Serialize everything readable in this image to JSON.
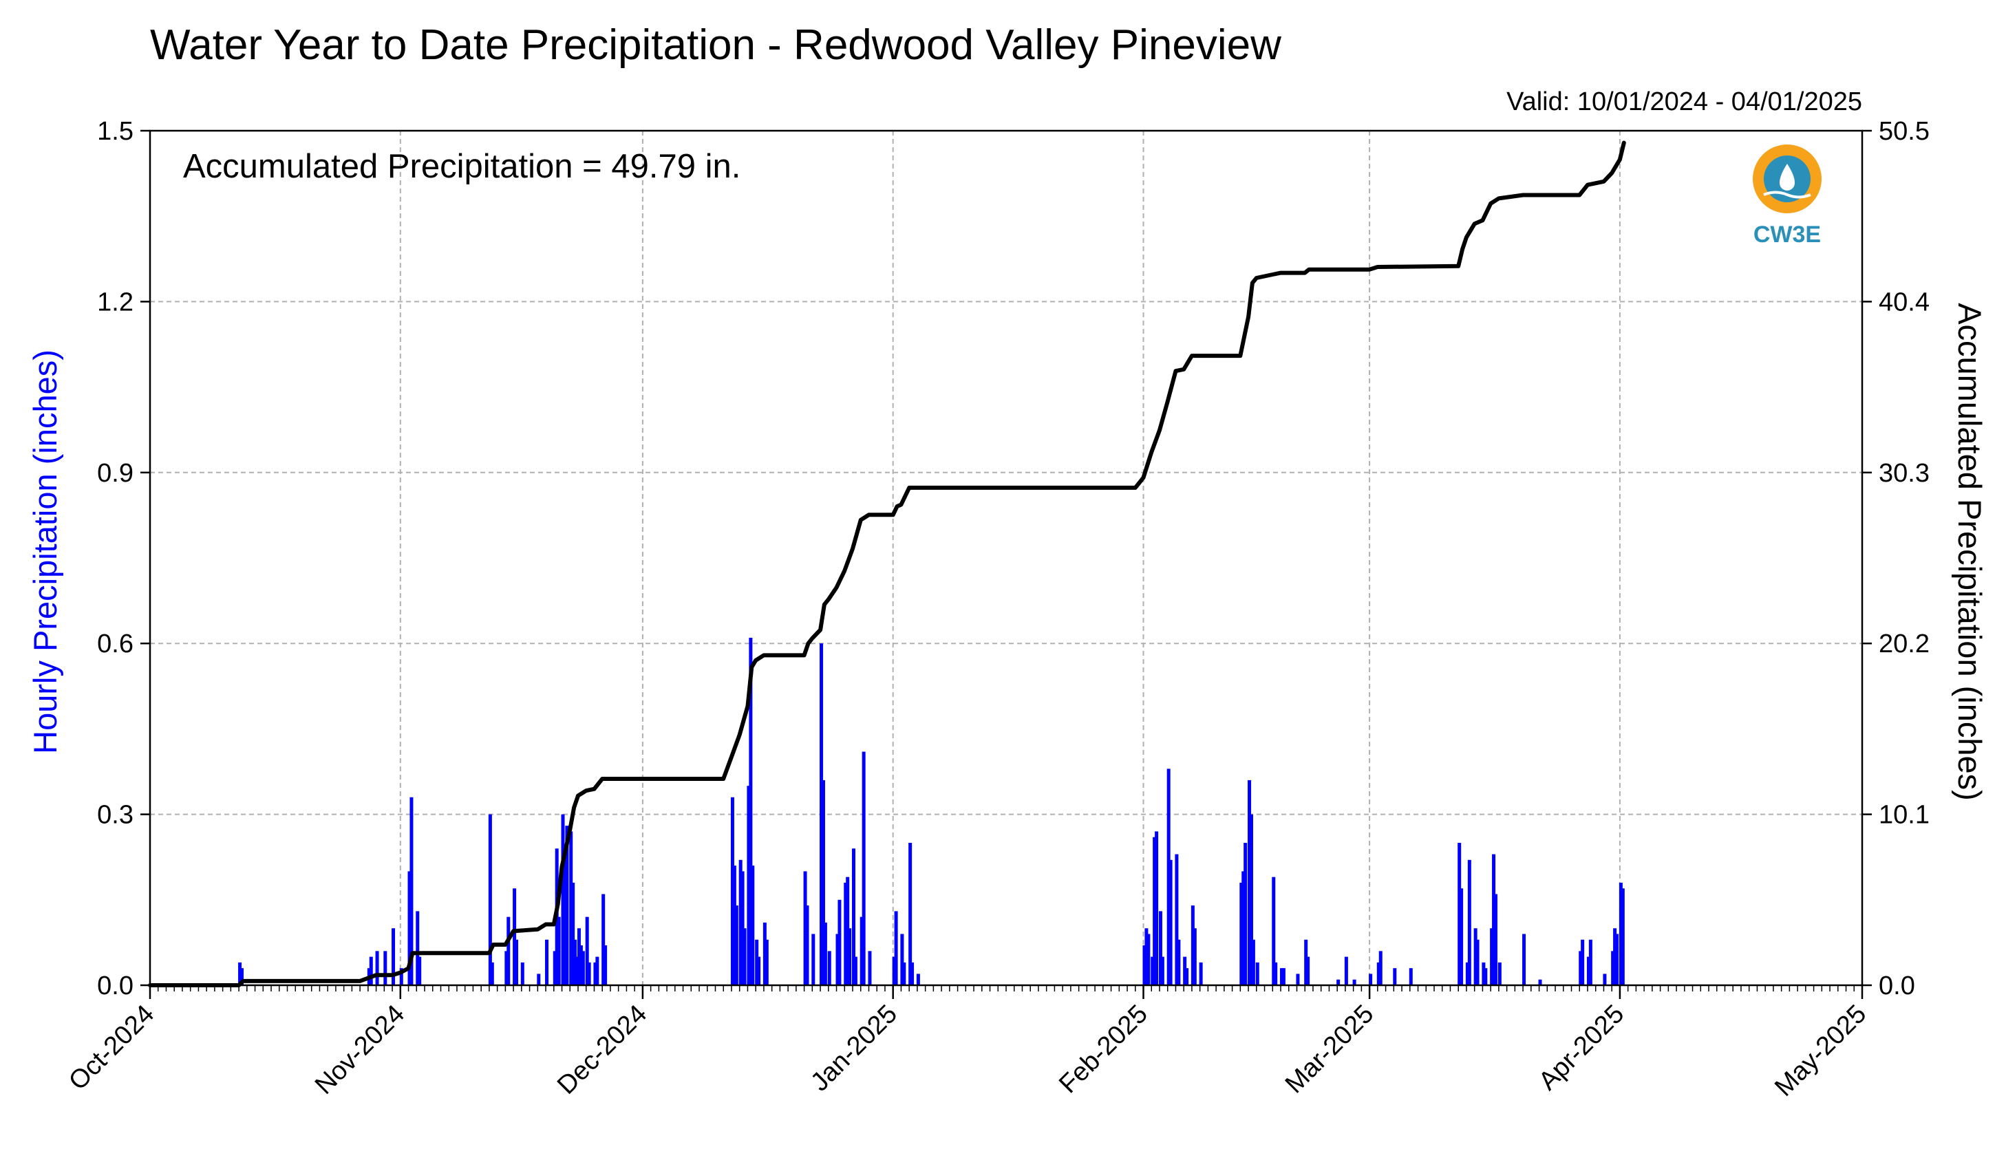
{
  "chart_data": {
    "type": "bar",
    "title": "Water Year to Date Precipitation - Redwood Valley Pineview",
    "valid_text": "Valid: 10/01/2024 - 04/01/2025",
    "annotation": "Accumulated Precipitation = 49.79 in.",
    "logo_text": "CW3E",
    "ylabel_left": "Hourly Precipitation (inches)",
    "ylabel_right": "Accumulated Precipitation (inches)",
    "x_tick_labels": [
      "Oct-2024",
      "Nov-2024",
      "Dec-2024",
      "Jan-2025",
      "Feb-2025",
      "Mar-2025",
      "Apr-2025",
      "May-2025"
    ],
    "x_tick_dates": [
      "2024-10-01",
      "2024-11-01",
      "2024-12-01",
      "2025-01-01",
      "2025-02-01",
      "2025-03-01",
      "2025-04-01",
      "2025-05-01"
    ],
    "xlim": [
      "2024-10-01",
      "2025-05-01"
    ],
    "left_ticks": [
      "0.0",
      "0.3",
      "0.6",
      "0.9",
      "1.2",
      "1.5"
    ],
    "right_ticks": [
      "0.0",
      "10.1",
      "20.2",
      "30.3",
      "40.4",
      "50.5"
    ],
    "ylim_left": [
      0,
      1.5
    ],
    "ylim_right": [
      0,
      50.5
    ],
    "grid": true,
    "colors": {
      "hourly": "#0000ff",
      "accumulated": "#000000",
      "ylabel_left": "#0000ff",
      "grid": "#b0b0b0"
    },
    "series": [
      {
        "name": "Hourly Precipitation (inches)",
        "axis": "left",
        "style": "bar",
        "points": [
          [
            "2024-10-12",
            0.04
          ],
          [
            "2024-10-12",
            0.03
          ],
          [
            "2024-10-28",
            0.03
          ],
          [
            "2024-10-28",
            0.05
          ],
          [
            "2024-10-29",
            0.06
          ],
          [
            "2024-10-30",
            0.06
          ],
          [
            "2024-10-31",
            0.1
          ],
          [
            "2024-11-01",
            0.03
          ],
          [
            "2024-11-02",
            0.2
          ],
          [
            "2024-11-02",
            0.33
          ],
          [
            "2024-11-03",
            0.13
          ],
          [
            "2024-11-03",
            0.05
          ],
          [
            "2024-11-12",
            0.3
          ],
          [
            "2024-11-12",
            0.04
          ],
          [
            "2024-11-14",
            0.06
          ],
          [
            "2024-11-14",
            0.12
          ],
          [
            "2024-11-15",
            0.17
          ],
          [
            "2024-11-15",
            0.08
          ],
          [
            "2024-11-16",
            0.04
          ],
          [
            "2024-11-18",
            0.02
          ],
          [
            "2024-11-19",
            0.08
          ],
          [
            "2024-11-20",
            0.06
          ],
          [
            "2024-11-20",
            0.24
          ],
          [
            "2024-11-20",
            0.12
          ],
          [
            "2024-11-21",
            0.3
          ],
          [
            "2024-11-21",
            0.24
          ],
          [
            "2024-11-21",
            0.28
          ],
          [
            "2024-11-22",
            0.27
          ],
          [
            "2024-11-22",
            0.18
          ],
          [
            "2024-11-22",
            0.08
          ],
          [
            "2024-11-22",
            0.05
          ],
          [
            "2024-11-23",
            0.1
          ],
          [
            "2024-11-23",
            0.07
          ],
          [
            "2024-11-23",
            0.06
          ],
          [
            "2024-11-24",
            0.12
          ],
          [
            "2024-11-24",
            0.04
          ],
          [
            "2024-11-25",
            0.04
          ],
          [
            "2024-11-25",
            0.05
          ],
          [
            "2024-11-26",
            0.16
          ],
          [
            "2024-11-26",
            0.07
          ],
          [
            "2024-12-12",
            0.33
          ],
          [
            "2024-12-12",
            0.21
          ],
          [
            "2024-12-12",
            0.14
          ],
          [
            "2024-12-13",
            0.22
          ],
          [
            "2024-12-13",
            0.2
          ],
          [
            "2024-12-13",
            0.1
          ],
          [
            "2024-12-14",
            0.35
          ],
          [
            "2024-12-14",
            0.61
          ],
          [
            "2024-12-14",
            0.21
          ],
          [
            "2024-12-15",
            0.08
          ],
          [
            "2024-12-15",
            0.05
          ],
          [
            "2024-12-16",
            0.11
          ],
          [
            "2024-12-16",
            0.08
          ],
          [
            "2024-12-21",
            0.2
          ],
          [
            "2024-12-21",
            0.14
          ],
          [
            "2024-12-22",
            0.09
          ],
          [
            "2024-12-23",
            0.6
          ],
          [
            "2024-12-23",
            0.36
          ],
          [
            "2024-12-23",
            0.11
          ],
          [
            "2024-12-24",
            0.06
          ],
          [
            "2024-12-25",
            0.09
          ],
          [
            "2024-12-25",
            0.15
          ],
          [
            "2024-12-26",
            0.18
          ],
          [
            "2024-12-26",
            0.19
          ],
          [
            "2024-12-26",
            0.1
          ],
          [
            "2024-12-27",
            0.24
          ],
          [
            "2024-12-27",
            0.05
          ],
          [
            "2024-12-28",
            0.12
          ],
          [
            "2024-12-28",
            0.41
          ],
          [
            "2024-12-29",
            0.06
          ],
          [
            "2025-01-01",
            0.05
          ],
          [
            "2025-01-01",
            0.13
          ],
          [
            "2025-01-02",
            0.09
          ],
          [
            "2025-01-02",
            0.04
          ],
          [
            "2025-01-03",
            0.25
          ],
          [
            "2025-01-03",
            0.04
          ],
          [
            "2025-01-04",
            0.02
          ],
          [
            "2025-02-01",
            0.07
          ],
          [
            "2025-02-01",
            0.1
          ],
          [
            "2025-02-01",
            0.09
          ],
          [
            "2025-02-02",
            0.05
          ],
          [
            "2025-02-02",
            0.26
          ],
          [
            "2025-02-02",
            0.27
          ],
          [
            "2025-02-03",
            0.13
          ],
          [
            "2025-02-03",
            0.05
          ],
          [
            "2025-02-04",
            0.38
          ],
          [
            "2025-02-04",
            0.22
          ],
          [
            "2025-02-05",
            0.23
          ],
          [
            "2025-02-05",
            0.08
          ],
          [
            "2025-02-06",
            0.05
          ],
          [
            "2025-02-06",
            0.03
          ],
          [
            "2025-02-07",
            0.14
          ],
          [
            "2025-02-07",
            0.1
          ],
          [
            "2025-02-08",
            0.04
          ],
          [
            "2025-02-13",
            0.18
          ],
          [
            "2025-02-13",
            0.2
          ],
          [
            "2025-02-13",
            0.25
          ],
          [
            "2025-02-14",
            0.36
          ],
          [
            "2025-02-14",
            0.3
          ],
          [
            "2025-02-14",
            0.08
          ],
          [
            "2025-02-15",
            0.04
          ],
          [
            "2025-02-17",
            0.19
          ],
          [
            "2025-02-17",
            0.04
          ],
          [
            "2025-02-18",
            0.03
          ],
          [
            "2025-02-18",
            0.03
          ],
          [
            "2025-02-20",
            0.02
          ],
          [
            "2025-02-21",
            0.08
          ],
          [
            "2025-02-21",
            0.05
          ],
          [
            "2025-02-25",
            0.01
          ],
          [
            "2025-02-26",
            0.05
          ],
          [
            "2025-02-27",
            0.01
          ],
          [
            "2025-03-01",
            0.02
          ],
          [
            "2025-03-02",
            0.04
          ],
          [
            "2025-03-02",
            0.06
          ],
          [
            "2025-03-04",
            0.03
          ],
          [
            "2025-03-06",
            0.03
          ],
          [
            "2025-03-12",
            0.25
          ],
          [
            "2025-03-12",
            0.17
          ],
          [
            "2025-03-13",
            0.04
          ],
          [
            "2025-03-13",
            0.22
          ],
          [
            "2025-03-14",
            0.1
          ],
          [
            "2025-03-14",
            0.08
          ],
          [
            "2025-03-15",
            0.04
          ],
          [
            "2025-03-15",
            0.03
          ],
          [
            "2025-03-16",
            0.1
          ],
          [
            "2025-03-16",
            0.23
          ],
          [
            "2025-03-16",
            0.16
          ],
          [
            "2025-03-17",
            0.04
          ],
          [
            "2025-03-20",
            0.09
          ],
          [
            "2025-03-22",
            0.01
          ],
          [
            "2025-03-27",
            0.06
          ],
          [
            "2025-03-27",
            0.08
          ],
          [
            "2025-03-28",
            0.05
          ],
          [
            "2025-03-28",
            0.08
          ],
          [
            "2025-03-30",
            0.02
          ],
          [
            "2025-03-31",
            0.06
          ],
          [
            "2025-03-31",
            0.1
          ],
          [
            "2025-03-31",
            0.09
          ],
          [
            "2025-04-01",
            0.18
          ],
          [
            "2025-04-01",
            0.17
          ]
        ]
      },
      {
        "name": "Accumulated Precipitation (inches)",
        "axis": "right",
        "style": "line",
        "points": [
          [
            "2024-10-01",
            0.0
          ],
          [
            "2024-10-12",
            0.0
          ],
          [
            "2024-10-12",
            0.25
          ],
          [
            "2024-10-27",
            0.25
          ],
          [
            "2024-10-29",
            0.6
          ],
          [
            "2024-10-31",
            0.6
          ],
          [
            "2024-11-01",
            0.75
          ],
          [
            "2024-11-02",
            1.0
          ],
          [
            "2024-11-02",
            1.9
          ],
          [
            "2024-11-12",
            1.9
          ],
          [
            "2024-11-12",
            2.4
          ],
          [
            "2024-11-14",
            2.4
          ],
          [
            "2024-11-15",
            3.2
          ],
          [
            "2024-11-18",
            3.3
          ],
          [
            "2024-11-19",
            3.6
          ],
          [
            "2024-11-20",
            3.6
          ],
          [
            "2024-11-20",
            4.8
          ],
          [
            "2024-11-21",
            7.0
          ],
          [
            "2024-11-22",
            9.2
          ],
          [
            "2024-11-22",
            10.5
          ],
          [
            "2024-11-23",
            11.2
          ],
          [
            "2024-11-24",
            11.5
          ],
          [
            "2024-11-25",
            11.6
          ],
          [
            "2024-11-26",
            12.2
          ],
          [
            "2024-12-11",
            12.2
          ],
          [
            "2024-12-12",
            13.5
          ],
          [
            "2024-12-13",
            14.8
          ],
          [
            "2024-12-14",
            16.5
          ],
          [
            "2024-12-14",
            18.8
          ],
          [
            "2024-12-15",
            19.2
          ],
          [
            "2024-12-16",
            19.5
          ],
          [
            "2024-12-21",
            19.5
          ],
          [
            "2024-12-21",
            20.2
          ],
          [
            "2024-12-22",
            20.5
          ],
          [
            "2024-12-23",
            21.0
          ],
          [
            "2024-12-23",
            22.5
          ],
          [
            "2024-12-24",
            22.8
          ],
          [
            "2024-12-25",
            23.5
          ],
          [
            "2024-12-26",
            24.5
          ],
          [
            "2024-12-27",
            25.8
          ],
          [
            "2024-12-28",
            27.5
          ],
          [
            "2024-12-29",
            27.8
          ],
          [
            "2025-01-01",
            27.8
          ],
          [
            "2025-01-01",
            28.3
          ],
          [
            "2025-01-02",
            28.4
          ],
          [
            "2025-01-03",
            29.4
          ],
          [
            "2025-01-31",
            29.4
          ],
          [
            "2025-02-01",
            30.0
          ],
          [
            "2025-02-02",
            31.5
          ],
          [
            "2025-02-03",
            32.8
          ],
          [
            "2025-02-04",
            34.5
          ],
          [
            "2025-02-05",
            36.3
          ],
          [
            "2025-02-06",
            36.4
          ],
          [
            "2025-02-07",
            37.2
          ],
          [
            "2025-02-13",
            37.2
          ],
          [
            "2025-02-14",
            39.5
          ],
          [
            "2025-02-14",
            41.5
          ],
          [
            "2025-02-15",
            41.8
          ],
          [
            "2025-02-17",
            42.0
          ],
          [
            "2025-02-18",
            42.1
          ],
          [
            "2025-02-21",
            42.1
          ],
          [
            "2025-02-21",
            42.3
          ],
          [
            "2025-03-01",
            42.3
          ],
          [
            "2025-03-02",
            42.45
          ],
          [
            "2025-03-12",
            42.5
          ],
          [
            "2025-03-12",
            43.5
          ],
          [
            "2025-03-13",
            44.2
          ],
          [
            "2025-03-14",
            45.0
          ],
          [
            "2025-03-15",
            45.2
          ],
          [
            "2025-03-16",
            46.2
          ],
          [
            "2025-03-17",
            46.5
          ],
          [
            "2025-03-20",
            46.7
          ],
          [
            "2025-03-27",
            46.7
          ],
          [
            "2025-03-28",
            47.3
          ],
          [
            "2025-03-30",
            47.5
          ],
          [
            "2025-03-31",
            48.0
          ],
          [
            "2025-04-01",
            48.8
          ],
          [
            "2025-04-01",
            49.79
          ]
        ]
      }
    ]
  }
}
